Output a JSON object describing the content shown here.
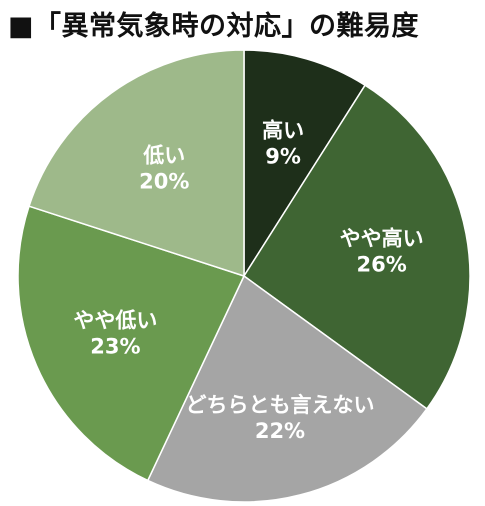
{
  "chart_data": {
    "type": "pie",
    "title": "■「異常気象時の対応」の難易度",
    "categories": [
      "高い",
      "やや高い",
      "どちらとも言えない",
      "やや低い",
      "低い"
    ],
    "values": [
      9,
      26,
      22,
      23,
      20
    ],
    "value_labels": [
      "9%",
      "26%",
      "22%",
      "23%",
      "20%"
    ],
    "colors": [
      "#1e2f1a",
      "#3f6533",
      "#a5a5a5",
      "#6a9a4f",
      "#9eb98a"
    ],
    "start": "12 o'clock",
    "direction": "clockwise",
    "legend": "none"
  }
}
